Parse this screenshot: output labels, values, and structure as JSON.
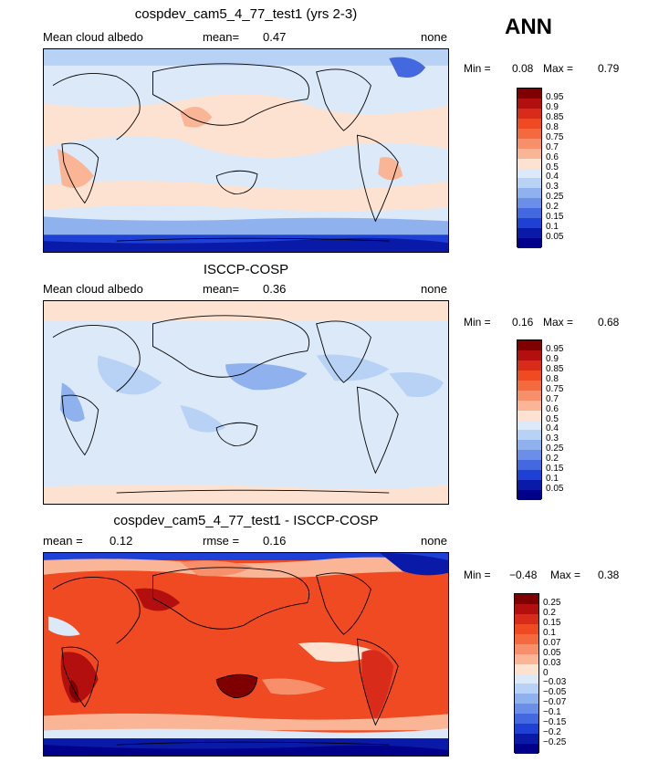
{
  "season": "ANN",
  "panels": [
    {
      "title": "cospdev_cam5_4_77_test1 (yrs 2-3)",
      "left_label": "Mean cloud albedo",
      "mid_label": "mean=",
      "mid_value": "0.47",
      "right_label": "none",
      "min_label": "Min =",
      "min_value": "0.08",
      "max_label": "Max =",
      "max_value": "0.79",
      "colorbar_labels": [
        "0.95",
        "0.9",
        "0.85",
        "0.8",
        "0.75",
        "0.7",
        "0.6",
        "0.5",
        "0.4",
        "0.3",
        "0.25",
        "0.2",
        "0.15",
        "0.1",
        "0.05"
      ]
    },
    {
      "title": "ISCCP-COSP",
      "left_label": "Mean cloud albedo",
      "mid_label": "mean=",
      "mid_value": "0.36",
      "right_label": "none",
      "min_label": "Min =",
      "min_value": "0.16",
      "max_label": "Max =",
      "max_value": "0.68",
      "colorbar_labels": [
        "0.95",
        "0.9",
        "0.85",
        "0.8",
        "0.75",
        "0.7",
        "0.6",
        "0.5",
        "0.4",
        "0.3",
        "0.25",
        "0.2",
        "0.15",
        "0.1",
        "0.05"
      ]
    },
    {
      "title": "cospdev_cam5_4_77_test1 - ISCCP-COSP",
      "left_label": "mean =",
      "left_value": "0.12",
      "mid_label": "rmse =",
      "mid_value": "0.16",
      "right_label": "none",
      "min_label": "Min =",
      "min_value": "−0.48",
      "max_label": "Max =",
      "max_value": "0.38",
      "colorbar_labels": [
        "0.25",
        "0.2",
        "0.15",
        "0.1",
        "0.07",
        "0.05",
        "0.03",
        "0",
        "−0.03",
        "−0.05",
        "−0.07",
        "−0.1",
        "−0.15",
        "−0.2",
        "−0.25"
      ]
    }
  ],
  "colors": {
    "scale": [
      "#7f0000",
      "#b30f0f",
      "#d92b1a",
      "#ef4a22",
      "#f4693d",
      "#f7906a",
      "#f9b596",
      "#fde2d2",
      "#dbe9f8",
      "#b7d2f4",
      "#8fb2ee",
      "#6b8fe8",
      "#4368e0",
      "#1f40d4",
      "#0a1aa8",
      "#00008b"
    ]
  }
}
